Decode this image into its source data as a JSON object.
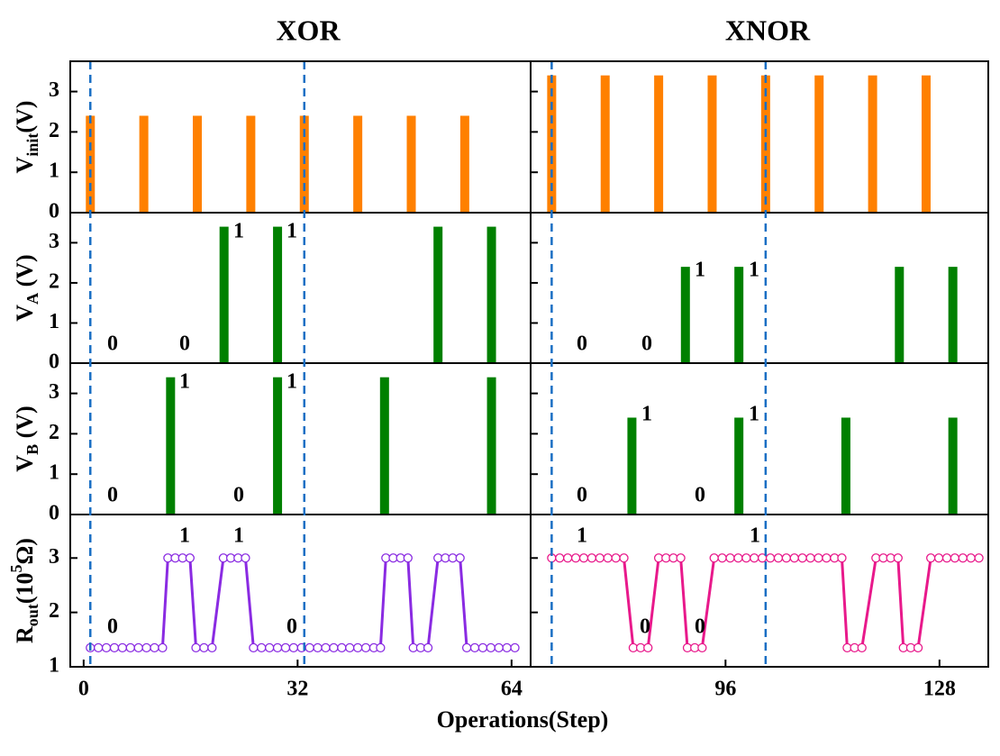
{
  "figure": {
    "titles": [
      "XOR",
      "XNOR"
    ],
    "xlabel": "Operations(Step)",
    "xlim": [
      -2,
      135.3
    ],
    "xticks": [
      0,
      32,
      64,
      96,
      128
    ],
    "reference_lines": [
      1,
      33,
      70,
      102
    ],
    "reference_color": "#1a6fc4"
  },
  "chart_data": [
    {
      "type": "bar",
      "ylabel": [
        {
          "text": "V"
        },
        {
          "text": "init",
          "sub": true
        },
        {
          "text": "(V)"
        }
      ],
      "ylim": [
        0,
        3.75
      ],
      "yticks": [
        0,
        1,
        2,
        3
      ],
      "series": [
        {
          "color": "#ff8000",
          "x": [
            1,
            9,
            17,
            25,
            33,
            41,
            49,
            57
          ],
          "values": [
            2.4,
            2.4,
            2.4,
            2.4,
            2.4,
            2.4,
            2.4,
            2.4
          ]
        },
        {
          "color": "#ff8000",
          "x": [
            70,
            78,
            86,
            94,
            102,
            110,
            118,
            126
          ],
          "values": [
            3.4,
            3.4,
            3.4,
            3.4,
            3.4,
            3.4,
            3.4,
            3.4
          ]
        }
      ],
      "annotations": []
    },
    {
      "type": "bar",
      "ylabel": [
        {
          "text": "V"
        },
        {
          "text": "A",
          "sub": true
        },
        {
          "text": " (V)"
        }
      ],
      "ylim": [
        0,
        3.75
      ],
      "yticks": [
        0,
        1,
        2,
        3
      ],
      "series": [
        {
          "color": "#008000",
          "x": [
            21,
            29,
            53,
            61
          ],
          "values": [
            3.4,
            3.4,
            3.4,
            3.4
          ]
        },
        {
          "color": "#008000",
          "x": [
            90,
            98,
            122,
            130
          ],
          "values": [
            2.4,
            2.4,
            2.4,
            2.4
          ]
        }
      ],
      "annotations": [
        "0",
        "0",
        "1",
        "1",
        "0",
        "0",
        "1",
        "1"
      ]
    },
    {
      "type": "bar",
      "ylabel": [
        {
          "text": "V"
        },
        {
          "text": "B",
          "sub": true
        },
        {
          "text": " (V)"
        }
      ],
      "ylim": [
        0,
        3.75
      ],
      "yticks": [
        0,
        1,
        2,
        3
      ],
      "series": [
        {
          "color": "#008000",
          "x": [
            13,
            29,
            45,
            61
          ],
          "values": [
            3.4,
            3.4,
            3.4,
            3.4
          ]
        },
        {
          "color": "#008000",
          "x": [
            82,
            98,
            114,
            130
          ],
          "values": [
            2.4,
            2.4,
            2.4,
            2.4
          ]
        }
      ],
      "annotations": [
        "0",
        "1",
        "0",
        "1",
        "0",
        "1",
        "0",
        "1"
      ]
    },
    {
      "type": "line",
      "ylabel": [
        {
          "text": "R"
        },
        {
          "text": "out",
          "sub": true
        },
        {
          "text": "(10"
        },
        {
          "text": "5",
          "sup": true
        },
        {
          "text": "Ω)"
        }
      ],
      "ylim": [
        1,
        3.8
      ],
      "yticks": [
        1,
        2,
        3
      ],
      "series": [
        {
          "color": "#8a2be2",
          "x": [
            1,
            2.2,
            3.4,
            4.6,
            5.8,
            7,
            8.2,
            9.4,
            10.6,
            11.8,
            12.6,
            13.7,
            14.8,
            15.9,
            16.8,
            18,
            19.2,
            20.9,
            22,
            23.1,
            24.2,
            25.4,
            26.6,
            27.8,
            29,
            30.2,
            31.4,
            32.6,
            33.8,
            35,
            36.2,
            37.4,
            38.6,
            39.8,
            41,
            42.2,
            43.4,
            44.4,
            45.2,
            46.3,
            47.4,
            48.5,
            49.3,
            50.4,
            51.5,
            53,
            54.1,
            55.2,
            56.3,
            57.3,
            58.5,
            59.7,
            60.9,
            62.1,
            63.3,
            64.5
          ],
          "values": [
            1.35,
            1.35,
            1.35,
            1.35,
            1.35,
            1.35,
            1.35,
            1.35,
            1.35,
            1.35,
            3,
            3,
            3,
            3,
            1.35,
            1.35,
            1.35,
            3,
            3,
            3,
            3,
            1.35,
            1.35,
            1.35,
            1.35,
            1.35,
            1.35,
            1.35,
            1.35,
            1.35,
            1.35,
            1.35,
            1.35,
            1.35,
            1.35,
            1.35,
            1.35,
            1.35,
            3,
            3,
            3,
            3,
            1.35,
            1.35,
            1.35,
            3,
            3,
            3,
            3,
            1.35,
            1.35,
            1.35,
            1.35,
            1.35,
            1.35,
            1.35
          ]
        },
        {
          "color": "#e8198b",
          "x": [
            70,
            71.2,
            72.4,
            73.6,
            74.8,
            76,
            77.2,
            78.4,
            79.6,
            80.8,
            82.2,
            83.3,
            84.4,
            86,
            87.1,
            88.2,
            89.3,
            90.3,
            91.4,
            92.5,
            94.3,
            95.5,
            96.7,
            97.9,
            99.1,
            100.3,
            101.5,
            102.7,
            103.9,
            105.1,
            106.3,
            107.5,
            108.7,
            109.9,
            111.1,
            112.3,
            113.4,
            114.2,
            115.3,
            116.4,
            118.5,
            119.6,
            120.7,
            121.8,
            122.6,
            123.7,
            124.8,
            126.7,
            127.9,
            129.1,
            130.3,
            131.5,
            132.7,
            133.9
          ],
          "values": [
            3,
            3,
            3,
            3,
            3,
            3,
            3,
            3,
            3,
            3,
            1.35,
            1.35,
            1.35,
            3,
            3,
            3,
            3,
            1.35,
            1.35,
            1.35,
            3,
            3,
            3,
            3,
            3,
            3,
            3,
            3,
            3,
            3,
            3,
            3,
            3,
            3,
            3,
            3,
            3,
            1.35,
            1.35,
            1.35,
            3,
            3,
            3,
            3,
            1.35,
            1.35,
            1.35,
            3,
            3,
            3,
            3,
            3,
            3,
            3
          ]
        }
      ],
      "annotations": [
        "1",
        "1",
        "0",
        "0",
        "1",
        "0",
        "0",
        "1"
      ]
    }
  ]
}
